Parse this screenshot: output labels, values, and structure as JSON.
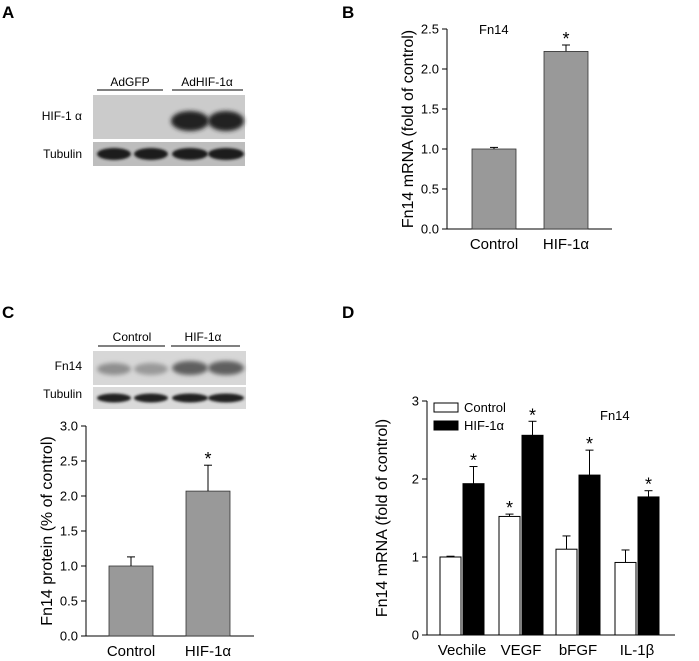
{
  "panels": {
    "A": {
      "letter": "A"
    },
    "B": {
      "letter": "B"
    },
    "C": {
      "letter": "C"
    },
    "D": {
      "letter": "D"
    }
  },
  "blot_A": {
    "lane_groups": [
      "AdGFP",
      "AdHIF-1α"
    ],
    "rows": [
      "HIF-1 α",
      "Tubulin"
    ]
  },
  "blot_C": {
    "lane_groups": [
      "Control",
      "HIF-1α"
    ],
    "rows": [
      "Fn14",
      "Tubulin"
    ]
  },
  "chart_data": [
    {
      "id": "B",
      "type": "bar",
      "annotation": "Fn14",
      "categories": [
        "Control",
        "HIF-1α"
      ],
      "values": [
        1.0,
        2.22
      ],
      "errors": [
        0.02,
        0.08
      ],
      "significance": [
        "",
        "*"
      ],
      "ylabel": "Fn14 mRNA (fold of control)",
      "ylim": [
        0,
        2.5
      ],
      "yticks": [
        "0.0",
        "0.5",
        "1.0",
        "1.5",
        "2.0",
        "2.5"
      ],
      "bar_color": "#999999",
      "grid": false
    },
    {
      "id": "C",
      "type": "bar",
      "categories": [
        "Control",
        "HIF-1α"
      ],
      "values": [
        1.0,
        2.07
      ],
      "errors": [
        0.13,
        0.37
      ],
      "significance": [
        "",
        "*"
      ],
      "ylabel": "Fn14 protein (% of control)",
      "ylim": [
        0,
        3.0
      ],
      "yticks": [
        "0.0",
        "0.5",
        "1.0",
        "1.5",
        "2.0",
        "2.5",
        "3.0"
      ],
      "bar_color": "#999999",
      "grid": false
    },
    {
      "id": "D",
      "type": "bar",
      "annotation": "Fn14",
      "categories": [
        "Vechile",
        "VEGF",
        "bFGF",
        "IL-1β"
      ],
      "series": [
        {
          "name": "Control",
          "values": [
            1.0,
            1.52,
            1.1,
            0.93
          ],
          "errors": [
            0.01,
            0.03,
            0.17,
            0.16
          ],
          "significance": [
            "",
            "*",
            "",
            ""
          ],
          "color": "#ffffff"
        },
        {
          "name": "HIF-1α",
          "values": [
            1.94,
            2.56,
            2.05,
            1.77
          ],
          "errors": [
            0.22,
            0.18,
            0.32,
            0.08
          ],
          "significance": [
            "*",
            "*",
            "*",
            "*"
          ],
          "color": "#000000"
        }
      ],
      "ylabel": "Fn14 mRNA (fold of control)",
      "ylim": [
        0,
        3
      ],
      "yticks": [
        "0",
        "1",
        "2",
        "3"
      ],
      "legend": "top-left",
      "grid": false
    }
  ]
}
